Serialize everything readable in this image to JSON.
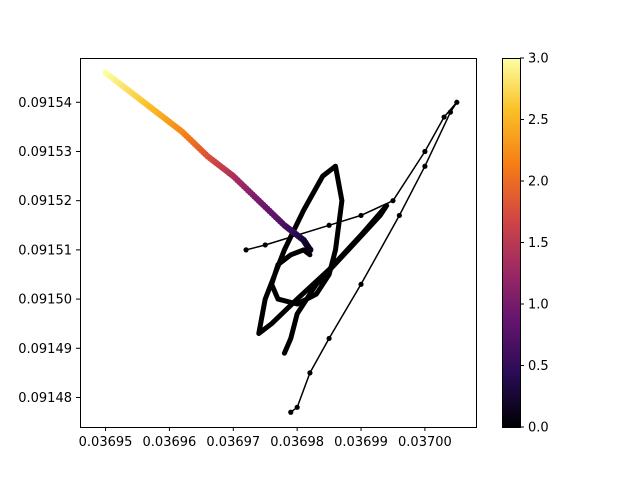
{
  "chart_data": {
    "type": "scatter",
    "title": "",
    "xlabel": "",
    "ylabel": "",
    "xlim": [
      0.036946,
      0.037008
    ],
    "ylim": [
      0.091474,
      0.091549
    ],
    "x_ticks": [
      0.03695,
      0.03696,
      0.03697,
      0.03698,
      0.03699,
      0.037
    ],
    "x_tick_labels": [
      "0.03695",
      "0.03696",
      "0.03697",
      "0.03698",
      "0.03699",
      "0.03700"
    ],
    "y_ticks": [
      0.09148,
      0.09149,
      0.0915,
      0.09151,
      0.09152,
      0.09153,
      0.09154
    ],
    "y_tick_labels": [
      "0.09148",
      "0.09149",
      "0.09150",
      "0.09151",
      "0.09152",
      "0.09153",
      "0.09154"
    ],
    "grid": false,
    "colorbar": {
      "colormap": "inferno",
      "range": [
        0.0,
        3.0
      ],
      "ticks": [
        0.0,
        0.5,
        1.0,
        1.5,
        2.0,
        2.5,
        3.0
      ],
      "tick_labels": [
        "0.0",
        "0.5",
        "1.0",
        "1.5",
        "2.0",
        "2.5",
        "3.0"
      ]
    },
    "series": [
      {
        "style": "black line with dot markers",
        "color": "#000000",
        "points": [
          [
            0.036972,
            0.09151
          ],
          [
            0.036975,
            0.091511
          ],
          [
            0.03698,
            0.091513
          ],
          [
            0.036985,
            0.091515
          ],
          [
            0.03699,
            0.091517
          ],
          [
            0.036995,
            0.09152
          ],
          [
            0.037,
            0.09153
          ],
          [
            0.037003,
            0.091537
          ],
          [
            0.037005,
            0.09154
          ],
          [
            0.037004,
            0.091538
          ],
          [
            0.037,
            0.091527
          ],
          [
            0.036996,
            0.091517
          ],
          [
            0.03699,
            0.091503
          ],
          [
            0.036985,
            0.091492
          ],
          [
            0.036982,
            0.091485
          ],
          [
            0.03698,
            0.091478
          ],
          [
            0.036979,
            0.091477
          ]
        ]
      },
      {
        "style": "dense black trajectory (curl)",
        "color": "#000000",
        "points": [
          [
            0.036982,
            0.091509
          ],
          [
            0.036981,
            0.09151
          ],
          [
            0.036979,
            0.091509
          ],
          [
            0.036977,
            0.091507
          ],
          [
            0.036976,
            0.091503
          ],
          [
            0.036977,
            0.0915
          ],
          [
            0.03698,
            0.091499
          ],
          [
            0.036983,
            0.091501
          ],
          [
            0.036985,
            0.091505
          ],
          [
            0.036986,
            0.09151
          ],
          [
            0.036987,
            0.09152
          ],
          [
            0.036986,
            0.091527
          ],
          [
            0.036984,
            0.091525
          ],
          [
            0.036981,
            0.091518
          ],
          [
            0.036978,
            0.09151
          ],
          [
            0.036975,
            0.0915
          ],
          [
            0.036974,
            0.091493
          ],
          [
            0.036976,
            0.091495
          ],
          [
            0.03698,
            0.0915
          ],
          [
            0.036985,
            0.091506
          ],
          [
            0.03699,
            0.091513
          ],
          [
            0.036994,
            0.091519
          ],
          [
            0.036993,
            0.091517
          ],
          [
            0.036988,
            0.09151
          ],
          [
            0.036983,
            0.091503
          ],
          [
            0.03698,
            0.091497
          ],
          [
            0.036979,
            0.091492
          ],
          [
            0.036978,
            0.091489
          ]
        ]
      },
      {
        "style": "color-graded markers (value mapped to colorbar)",
        "colormap": "inferno",
        "points": [
          [
            0.03695,
            0.091546,
            3.0
          ],
          [
            0.036954,
            0.091542,
            2.75
          ],
          [
            0.036958,
            0.091538,
            2.5
          ],
          [
            0.036962,
            0.091534,
            2.2
          ],
          [
            0.036966,
            0.091529,
            1.8
          ],
          [
            0.03697,
            0.091525,
            1.4
          ],
          [
            0.036974,
            0.09152,
            1.0
          ],
          [
            0.036978,
            0.091515,
            0.7
          ],
          [
            0.036981,
            0.091512,
            0.3
          ],
          [
            0.036982,
            0.09151,
            0.1
          ]
        ]
      }
    ]
  }
}
